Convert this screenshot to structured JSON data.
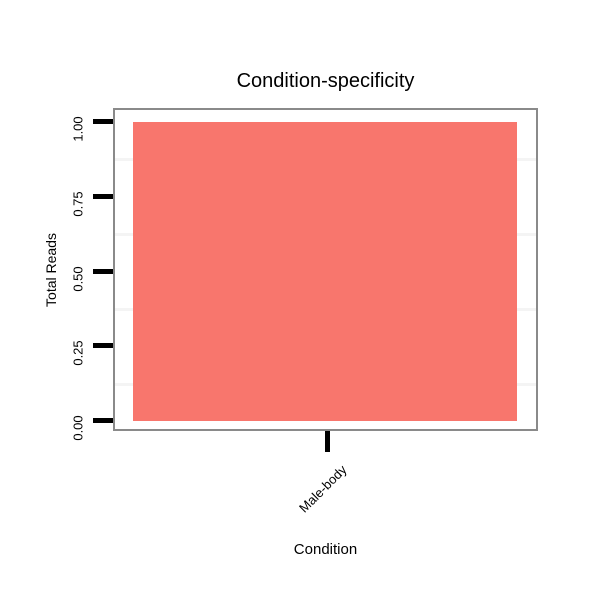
{
  "chart_data": {
    "type": "bar",
    "title": "Condition-specificity",
    "xlabel": "Condition",
    "ylabel": "Total Reads",
    "categories": [
      "Male-body"
    ],
    "values": [
      1.0
    ],
    "ylim": [
      0,
      1
    ],
    "yticks": [
      0.0,
      0.25,
      0.5,
      0.75,
      1.0
    ],
    "ytick_labels": [
      "0.00",
      "0.25",
      "0.50",
      "0.75",
      "1.00"
    ],
    "minor_gridline_values": [
      0.125,
      0.375,
      0.625,
      0.875
    ],
    "legend": "none",
    "grid": "minor-horizontal-only",
    "colors": {
      "bar_fill": "#F8766D",
      "panel_border": "#8A8A8A",
      "minor_gridline": "#F4F4F4",
      "tick": "#000000",
      "text": "#000000",
      "background": "#FFFFFF"
    }
  }
}
